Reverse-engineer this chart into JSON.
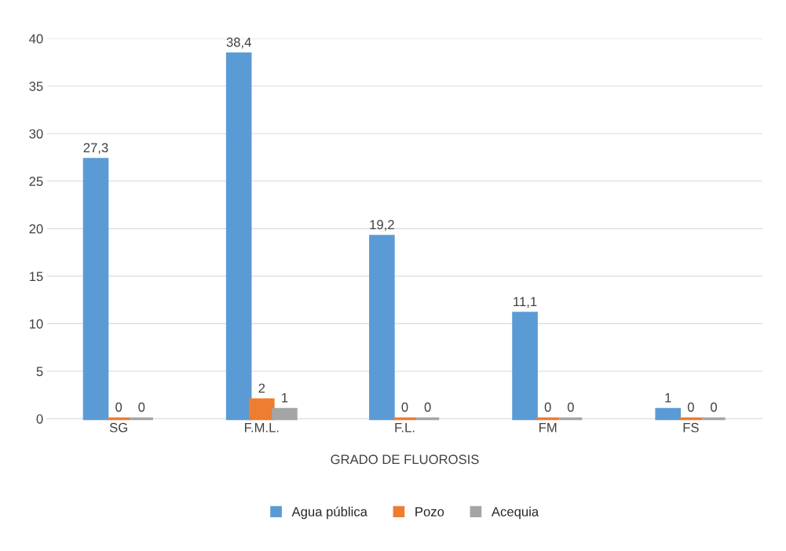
{
  "chart_data": {
    "type": "bar",
    "categories": [
      "SG",
      "F.M.L.",
      "F.L.",
      "FM",
      "FS"
    ],
    "series": [
      {
        "name": "Agua pública",
        "color": "#5b9bd5",
        "values": [
          27.3,
          38.4,
          19.2,
          11.1,
          1
        ],
        "value_labels": [
          "27,3",
          "38,4",
          "19,2",
          "11,1",
          "1"
        ]
      },
      {
        "name": "Pozo",
        "color": "#ed7d31",
        "values": [
          0,
          2,
          0,
          0,
          0
        ],
        "value_labels": [
          "0",
          "2",
          "0",
          "0",
          "0"
        ]
      },
      {
        "name": "Acequia",
        "color": "#a5a5a5",
        "values": [
          0,
          1,
          0,
          0,
          0
        ],
        "value_labels": [
          "0",
          "1",
          "0",
          "0",
          "0"
        ]
      }
    ],
    "xlabel": "GRADO DE FLUOROSIS",
    "ylim": [
      0,
      40
    ],
    "yticks": [
      0,
      5,
      10,
      15,
      20,
      25,
      30,
      35,
      40
    ],
    "grid": "y",
    "legend": "bottom"
  }
}
